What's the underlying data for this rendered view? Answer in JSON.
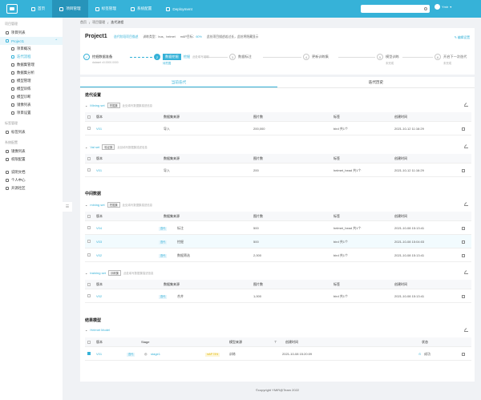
{
  "nav": {
    "items": [
      {
        "label": "首页"
      },
      {
        "label": "项目管理"
      },
      {
        "label": "标签管理"
      },
      {
        "label": "系统配置"
      },
      {
        "label": "Deployment"
      }
    ],
    "search_placeholder": "",
    "user_name": "Ymir"
  },
  "sidebar": {
    "group1": "项目管理",
    "project_list": "项目列表",
    "project_name": "Project1",
    "sub_items": [
      {
        "label": "项目概况"
      },
      {
        "label": "迭代流程"
      },
      {
        "label": "数据集管理"
      },
      {
        "label": "数据集分析"
      },
      {
        "label": "模型管理"
      },
      {
        "label": "模型训练"
      },
      {
        "label": "模型诊断"
      },
      {
        "label": "镜像列表"
      },
      {
        "label": "项目设置"
      }
    ],
    "group2": "标签管理",
    "label_list": "标签列表",
    "group3": "系统配置",
    "image_list": "镜像列表",
    "perm_config": "权限配置",
    "doc": "说明文档",
    "profile": "个人中心",
    "community": "开源社区"
  },
  "breadcrumb": [
    "首页",
    "项目管理",
    "迭代流程"
  ],
  "project": {
    "name": "Project1",
    "desc": "迭代阶段项目描述",
    "type": "训练类型：",
    "type_val": "bus、helmet",
    "map_label": "mAP目标：",
    "map_val": "60%",
    "note": "此处项目描述若过长，此处将隐藏显示",
    "edit_label": "编辑设置"
  },
  "steps": [
    {
      "num": "✓",
      "title": "挖掘数据准备",
      "sub": "dataset v0.0000.0000",
      "state": "done"
    },
    {
      "num": "2",
      "title": "数据挖掘",
      "sub": "待挖掘",
      "state": "cur"
    },
    {
      "num": "3",
      "title": "数据标注",
      "sub": "",
      "state": ""
    },
    {
      "num": "4",
      "title": "更新训练集",
      "sub": "",
      "state": ""
    },
    {
      "num": "5",
      "title": "模型训练",
      "sub": "未完成",
      "state": ""
    },
    {
      "num": "6",
      "title": "开启下一次迭代",
      "sub": "未完成",
      "state": ""
    }
  ],
  "step_extra": {
    "cur_label": "挖掘",
    "cur_note": "此处填写说明"
  },
  "tabs": [
    "当前迭代",
    "迭代历史"
  ],
  "sections": {
    "s1": "迭代设置",
    "s2": "中间数据",
    "s3": "结果模型"
  },
  "columns": {
    "version": "版本",
    "source": "数据集来源",
    "images": "图片数",
    "labels": "标签",
    "created": "创建时间",
    "stage": "Stage",
    "model_source": "模型来源",
    "status": "状态"
  },
  "group_mining_set": {
    "name": "Mining set",
    "tag": "挖掘集",
    "note": "此处填写数据集描述信息",
    "rows": [
      {
        "ver": "V01",
        "source": "导入",
        "images": "200,000",
        "labels": "bird 共1个",
        "time": "2021-10-12 11:16:29"
      }
    ]
  },
  "group_val_set": {
    "name": "Val set",
    "tag": "验证集",
    "note": "此处填写数据集描述信息",
    "rows": [
      {
        "ver": "V01",
        "source": "导入",
        "images": "200",
        "labels": "helmet_head 共1个",
        "time": "2021-10-12 11:16:29"
      }
    ]
  },
  "group_mining_set2": {
    "name": "mining set",
    "tag": "挖掘集",
    "note": "此处填写数据集描述信息",
    "rows": [
      {
        "ver": "V04",
        "badge": "迭代",
        "source": "标注",
        "images": "500",
        "labels": "helmet_head 共1个",
        "time": "2021-10-08 15:13:41"
      },
      {
        "ver": "V03",
        "badge": "迭代",
        "source": "挖掘",
        "images": "500",
        "labels": "bird 共1个",
        "time": "2021-10-08 15:04:03"
      },
      {
        "ver": "V02",
        "badge": "迭代",
        "source": "数据筛选",
        "images": "2,000",
        "labels": "bird 共1个",
        "time": "2021-10-08 15:13:41"
      }
    ]
  },
  "group_training_set": {
    "name": "training set",
    "tag": "训练集",
    "note": "此处填写数据集描述信息",
    "rows": [
      {
        "ver": "V02",
        "badge": "迭代",
        "source": "合并",
        "images": "1,000",
        "labels": "bird 共1个",
        "time": "2021-10-08 15:13:41"
      }
    ]
  },
  "group_model": {
    "name": "Helmet Model",
    "rows": [
      {
        "ver": "V01",
        "badge": "迭代",
        "stage": "stage1",
        "stage_badge": "mAP 74%",
        "source": "训练",
        "time": "2021-10-08 15:20:09",
        "status": "成功"
      }
    ]
  },
  "footer": "©copyright YMIR@Team 2022"
}
